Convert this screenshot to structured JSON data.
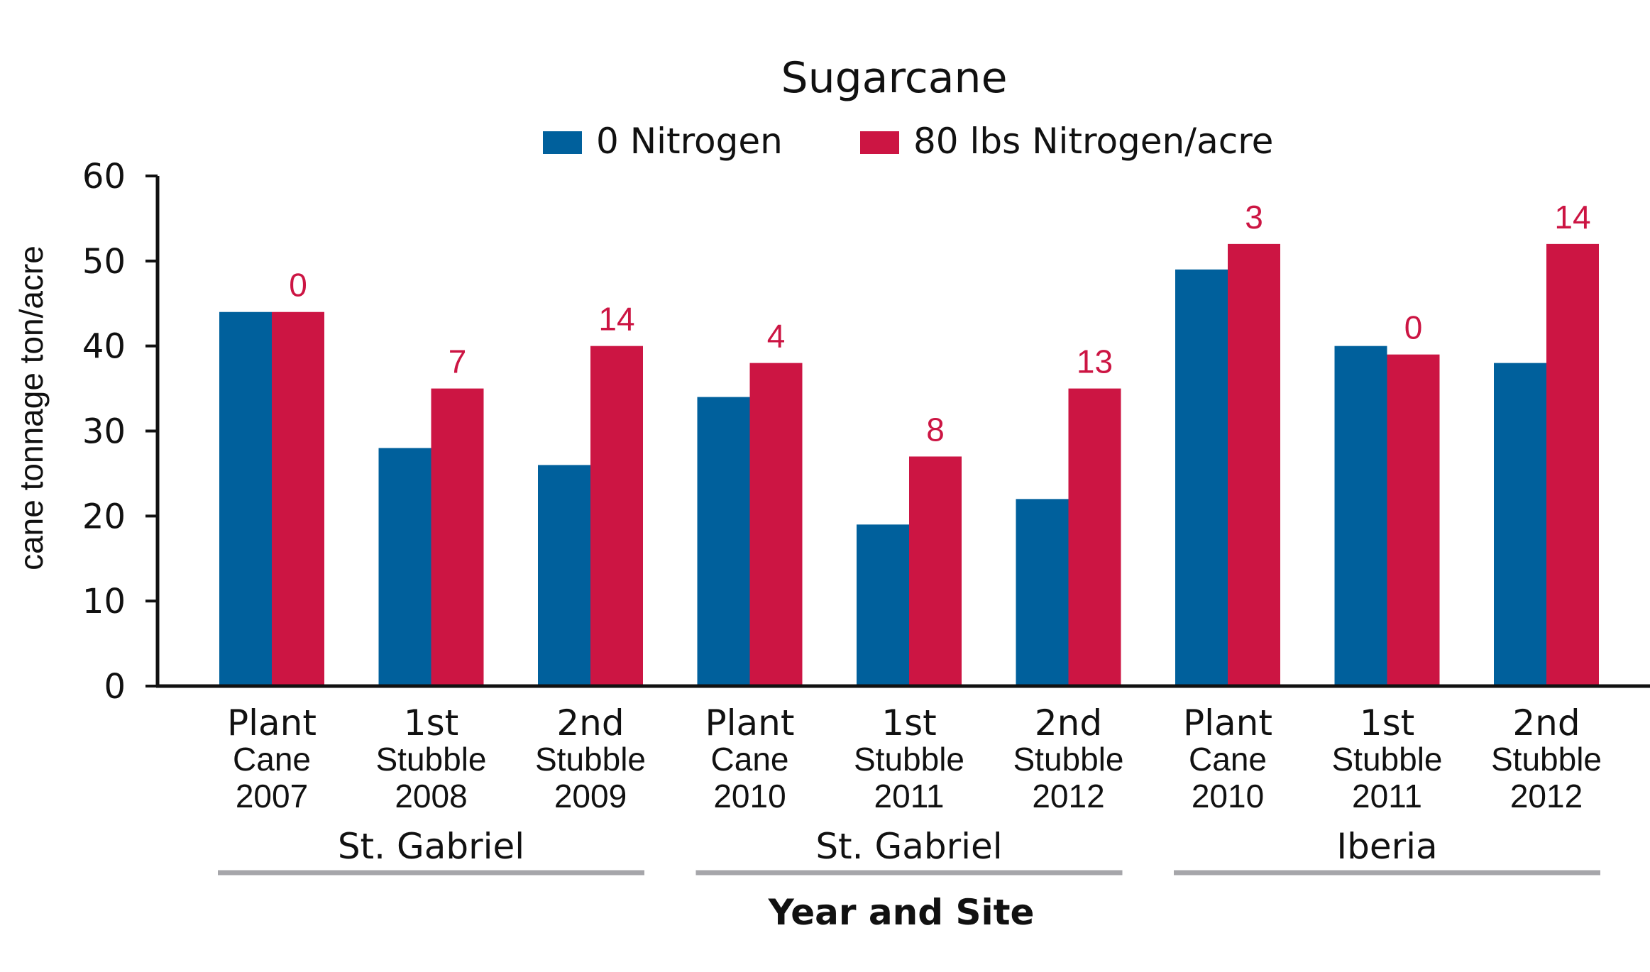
{
  "colors": {
    "series0": "#00609c",
    "series1": "#cc1543",
    "axis": "#111111",
    "group_bar": "#a6a6aa"
  },
  "chart_data": {
    "type": "bar",
    "title": "Sugarcane",
    "xlabel": "Year and Site",
    "ylabel": "cane tonnage  ton/acre",
    "ylim": [
      0,
      60
    ],
    "yticks": [
      "0",
      "10",
      "20",
      "30",
      "40",
      "50",
      "60"
    ],
    "grid": false,
    "legend": "top",
    "categories": [
      {
        "line1": "Plant",
        "line2": "Cane",
        "line3": "2007"
      },
      {
        "line1": "1st",
        "line2": "Stubble",
        "line3": "2008"
      },
      {
        "line1": "2nd",
        "line2": "Stubble",
        "line3": "2009"
      },
      {
        "line1": "Plant",
        "line2": "Cane",
        "line3": "2010"
      },
      {
        "line1": "1st",
        "line2": "Stubble",
        "line3": "2011"
      },
      {
        "line1": "2nd",
        "line2": "Stubble",
        "line3": "2012"
      },
      {
        "line1": "Plant",
        "line2": "Cane",
        "line3": "2010"
      },
      {
        "line1": "1st",
        "line2": "Stubble",
        "line3": "2011"
      },
      {
        "line1": "2nd",
        "line2": "Stubble",
        "line3": "2012"
      }
    ],
    "groups": [
      {
        "label": "St. Gabriel",
        "categories": [
          0,
          1,
          2
        ]
      },
      {
        "label": "St. Gabriel",
        "categories": [
          3,
          4,
          5
        ]
      },
      {
        "label": "Iberia",
        "categories": [
          6,
          7,
          8
        ]
      }
    ],
    "series": [
      {
        "name": "0 Nitrogen",
        "values": [
          44,
          28,
          26,
          34,
          19,
          22,
          49,
          40,
          38
        ]
      },
      {
        "name": "80 lbs Nitrogen/acre",
        "values": [
          44,
          35,
          40,
          38,
          27,
          35,
          52,
          39,
          52
        ]
      }
    ],
    "data_labels": [
      "0",
      "7",
      "14",
      "4",
      "8",
      "13",
      "3",
      "0",
      "14"
    ]
  }
}
